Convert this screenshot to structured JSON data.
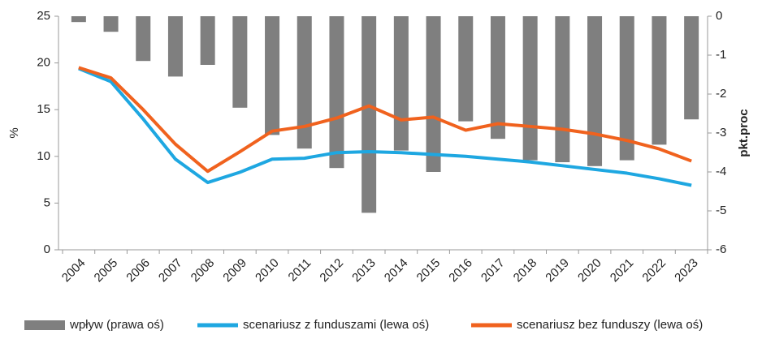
{
  "chart_data": {
    "type": "bar-line",
    "ylabel": "%",
    "y2label": "pkt.proc",
    "categories": [
      "2004",
      "2005",
      "2006",
      "2007",
      "2008",
      "2009",
      "2010",
      "2011",
      "2012",
      "2013",
      "2014",
      "2015",
      "2016",
      "2017",
      "2018",
      "2019",
      "2020",
      "2021",
      "2022",
      "2023"
    ],
    "ylim": [
      0,
      25
    ],
    "yticks": [
      0,
      5,
      10,
      15,
      20,
      25
    ],
    "y2lim": [
      -6,
      0
    ],
    "y2ticks": [
      -6,
      -5,
      -4,
      -3,
      -2,
      -1,
      0
    ],
    "grid": false,
    "legend": "bottom",
    "series": [
      {
        "name": "wpływ (prawa oś)",
        "type": "bar",
        "axis": "y2",
        "color": "#7f7f7f",
        "values": [
          -0.15,
          -0.4,
          -1.15,
          -1.55,
          -1.25,
          -2.35,
          -3.05,
          -3.4,
          -3.9,
          -5.05,
          -3.45,
          -4.0,
          -2.7,
          -3.15,
          -3.7,
          -3.75,
          -3.85,
          -3.7,
          -3.3,
          -2.65
        ]
      },
      {
        "name": "scenariusz z funduszami (lewa oś)",
        "type": "line",
        "color": "#1ea7e1",
        "values": [
          19.4,
          18.0,
          14.0,
          9.7,
          7.2,
          8.3,
          9.7,
          9.8,
          10.4,
          10.5,
          10.4,
          10.2,
          10.0,
          9.7,
          9.4,
          9.0,
          8.6,
          8.2,
          7.6,
          6.9
        ]
      },
      {
        "name": "scenariusz bez funduszy (lewa oś)",
        "type": "line",
        "color": "#f0621e",
        "values": [
          19.5,
          18.4,
          15.0,
          11.3,
          8.4,
          10.5,
          12.7,
          13.2,
          14.1,
          15.4,
          13.9,
          14.2,
          12.8,
          13.5,
          13.2,
          12.9,
          12.4,
          11.7,
          10.8,
          9.5
        ]
      }
    ]
  }
}
